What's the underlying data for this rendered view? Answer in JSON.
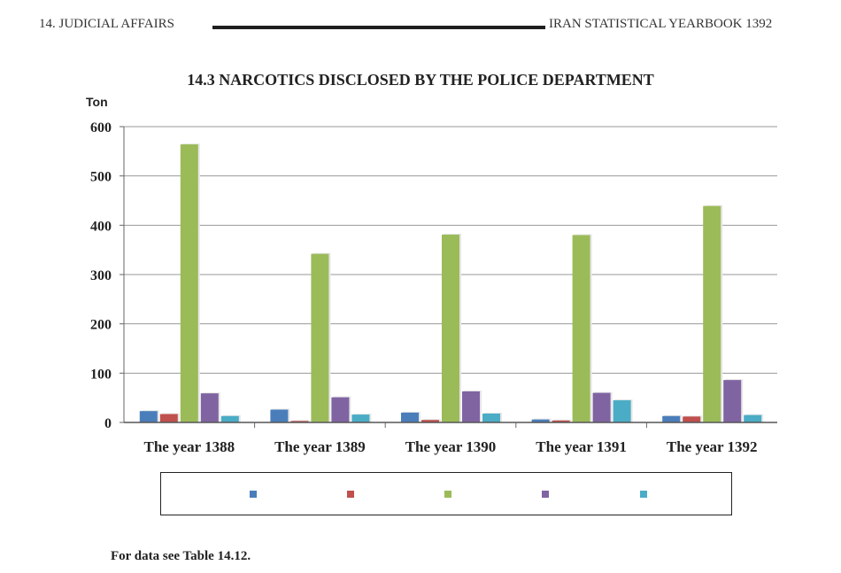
{
  "page_header": {
    "left": "14. JUDICIAL AFFAIRS",
    "right": "IRAN STATISTICAL YEARBOOK 1392"
  },
  "footnote": "For data see Table 14.12.",
  "chart_data": {
    "type": "bar",
    "title": "14.3 NARCOTICS DISCLOSED BY THE POLICE DEPARTMENT",
    "ylabel": "Ton",
    "xlabel": "",
    "categories": [
      "The year 1388",
      "The year 1389",
      "The year 1390",
      "The year 1391",
      "The year 1392"
    ],
    "ylim": [
      0,
      600
    ],
    "yticks": [
      0,
      100,
      200,
      300,
      400,
      500,
      600
    ],
    "grid": true,
    "legend_position": "bottom",
    "series": [
      {
        "color": "#4a7ebb",
        "values": [
          23,
          26,
          20,
          6,
          13
        ]
      },
      {
        "color": "#c0504d",
        "values": [
          17,
          3,
          5,
          4,
          12
        ]
      },
      {
        "color": "#9bbb59",
        "values": [
          564,
          342,
          381,
          380,
          439
        ]
      },
      {
        "color": "#8064a2",
        "values": [
          59,
          51,
          63,
          60,
          86
        ]
      },
      {
        "color": "#4bacc6",
        "values": [
          13,
          16,
          18,
          45,
          15
        ]
      }
    ]
  }
}
